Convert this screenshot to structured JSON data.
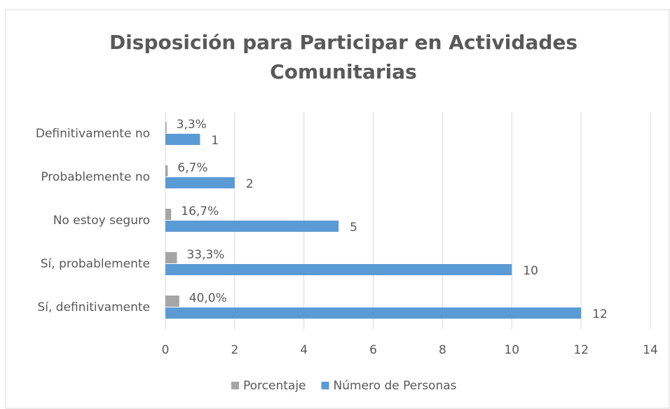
{
  "chart_data": {
    "type": "bar",
    "orientation": "horizontal",
    "title": "Disposición para Participar en Actividades Comunitarias",
    "categories": [
      "Definitivamente no",
      "Probablemente no",
      "No estoy seguro",
      "Sí, probablemente",
      "Sí, definitivamente"
    ],
    "series": [
      {
        "name": "Porcentaje",
        "color": "#a5a5a5",
        "values": [
          0.033,
          0.067,
          0.167,
          0.333,
          0.4
        ],
        "value_labels": [
          "3,3%",
          "6,7%",
          "16,7%",
          "33,3%",
          "40,0%"
        ]
      },
      {
        "name": "Número de Personas",
        "color": "#5b9bd5",
        "values": [
          1,
          2,
          5,
          10,
          12
        ]
      }
    ],
    "xlim": [
      0,
      14
    ],
    "xticks": [
      0,
      2,
      4,
      6,
      8,
      10,
      12,
      14
    ],
    "grid": true,
    "legend": "bottom"
  }
}
